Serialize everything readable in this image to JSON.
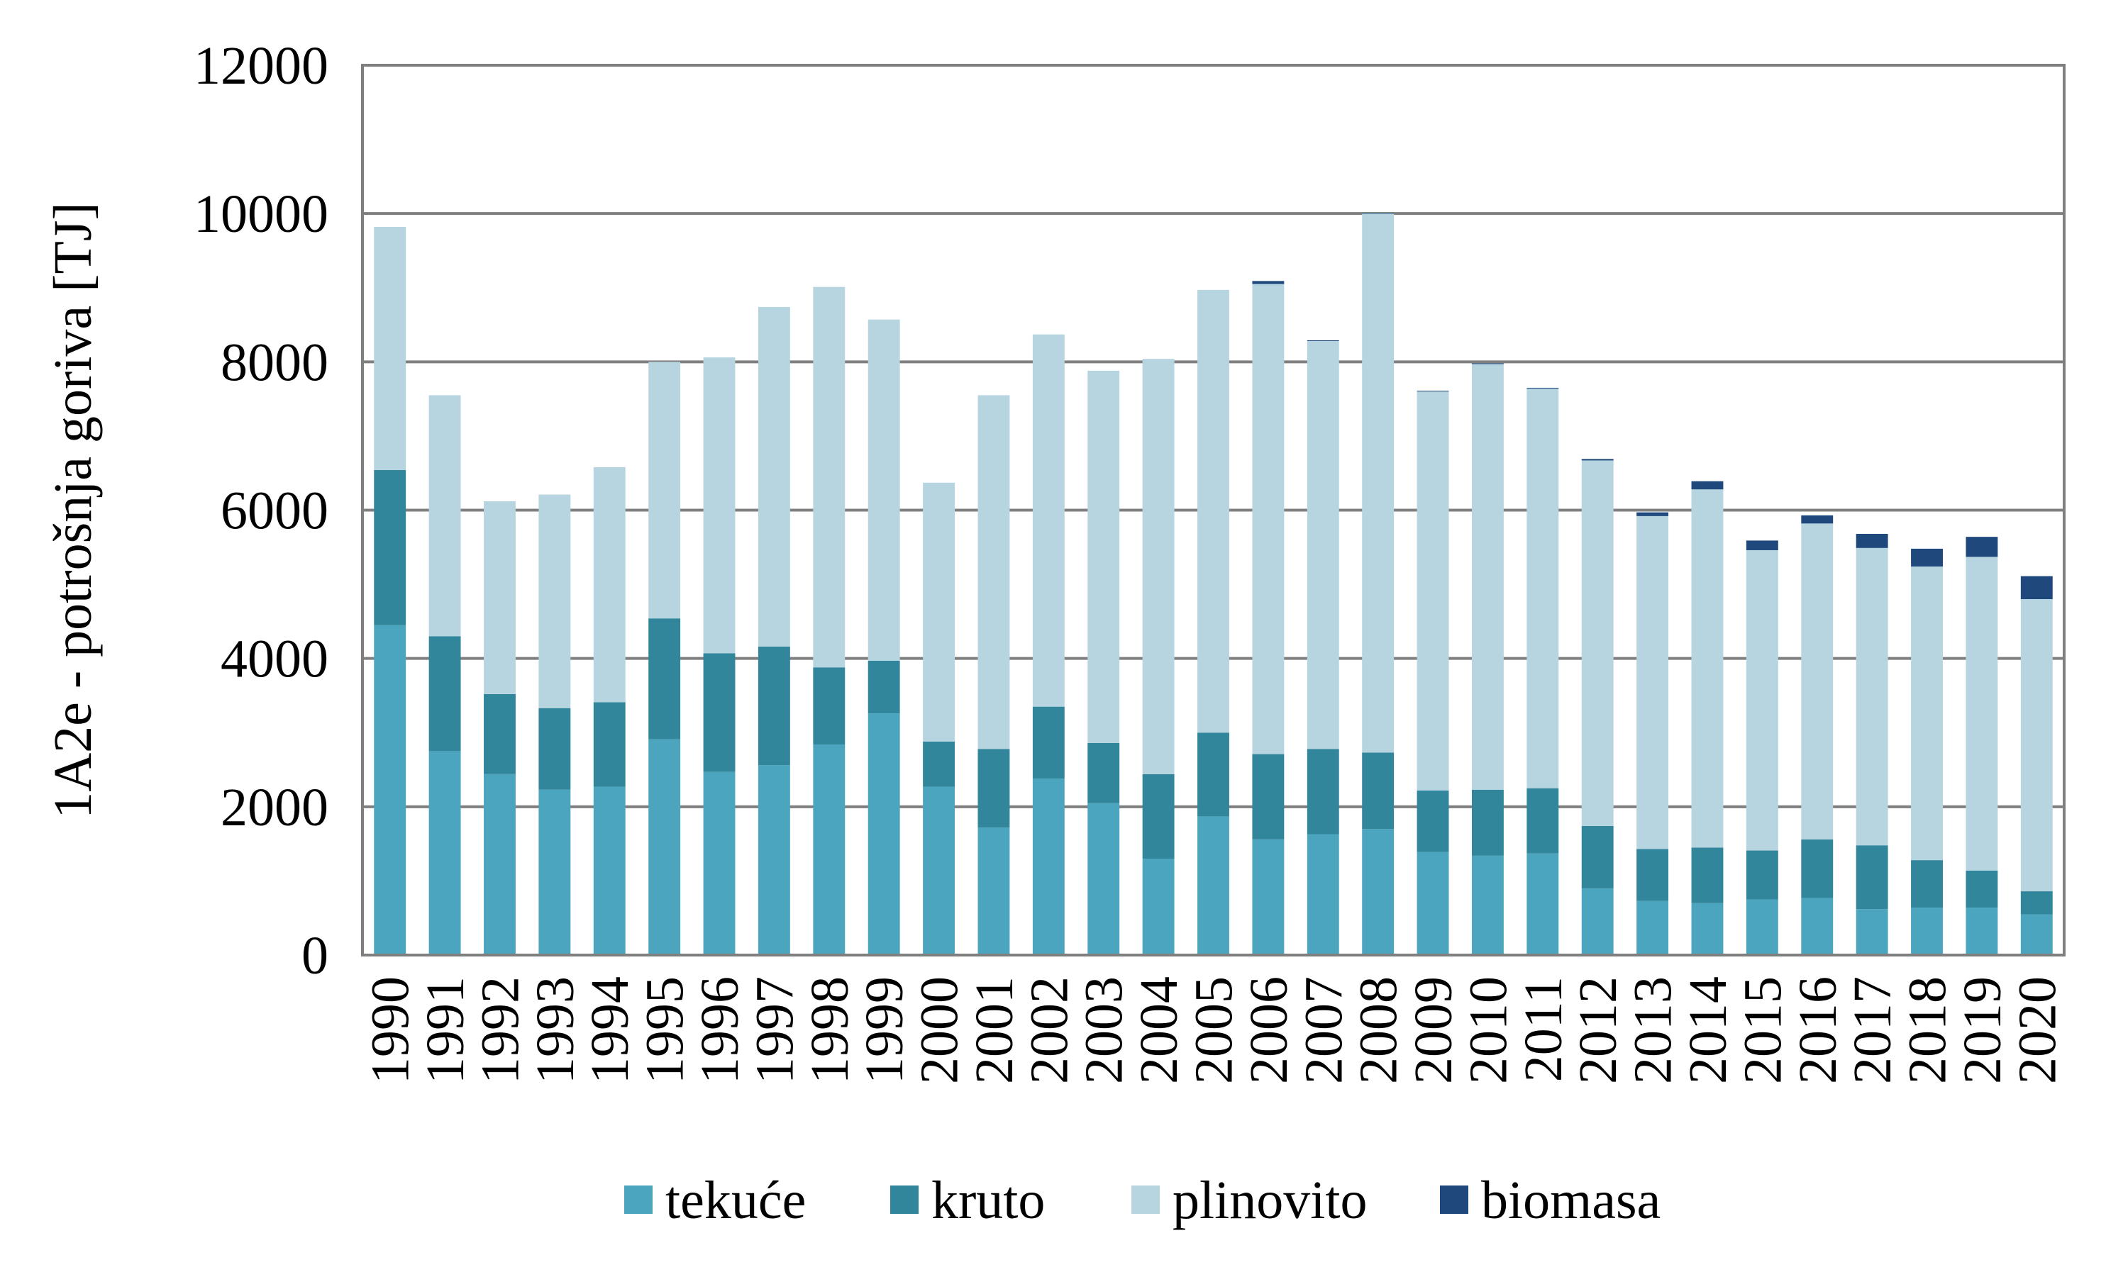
{
  "chart_data": {
    "type": "bar",
    "stacked": true,
    "title": "",
    "xlabel": "",
    "ylabel": "1A2e - potrošnja goriva [TJ]",
    "ylim": [
      0,
      12000
    ],
    "yticks": [
      0,
      2000,
      4000,
      6000,
      8000,
      10000,
      12000
    ],
    "grid": true,
    "legend_position": "bottom",
    "categories": [
      "1990",
      "1991",
      "1992",
      "1993",
      "1994",
      "1995",
      "1996",
      "1997",
      "1998",
      "1999",
      "2000",
      "2001",
      "2002",
      "2003",
      "2004",
      "2005",
      "2006",
      "2007",
      "2008",
      "2009",
      "2010",
      "2011",
      "2012",
      "2013",
      "2014",
      "2015",
      "2016",
      "2017",
      "2018",
      "2019",
      "2020"
    ],
    "series": [
      {
        "name": "tekuće",
        "color": "#4BA5BE",
        "values": [
          4450,
          2750,
          2440,
          2230,
          2270,
          2910,
          2470,
          2560,
          2840,
          3260,
          2270,
          1720,
          2380,
          2050,
          1300,
          1870,
          1560,
          1630,
          1700,
          1390,
          1340,
          1370,
          900,
          730,
          700,
          750,
          770,
          620,
          640,
          640,
          550
        ]
      },
      {
        "name": "kruto",
        "color": "#31869B",
        "values": [
          2090,
          1550,
          1080,
          1100,
          1140,
          1630,
          1600,
          1600,
          1040,
          710,
          610,
          1060,
          970,
          810,
          1140,
          1130,
          1150,
          1150,
          1030,
          830,
          890,
          880,
          840,
          700,
          750,
          660,
          790,
          860,
          640,
          500,
          310
        ]
      },
      {
        "name": "plinovito",
        "color": "#B7D5E0",
        "values": [
          3280,
          3250,
          2600,
          2880,
          3170,
          3460,
          3990,
          4580,
          5130,
          4600,
          3490,
          4770,
          5020,
          5020,
          5600,
          5970,
          6340,
          5500,
          7270,
          5380,
          5740,
          5390,
          4930,
          4490,
          4830,
          4050,
          4260,
          4010,
          3960,
          4230,
          3940
        ]
      },
      {
        "name": "biomasa",
        "color": "#1F497D",
        "values": [
          0,
          0,
          0,
          0,
          0,
          0,
          0,
          0,
          0,
          0,
          0,
          0,
          0,
          0,
          0,
          0,
          40,
          10,
          10,
          10,
          10,
          10,
          20,
          50,
          110,
          130,
          110,
          190,
          240,
          270,
          310
        ]
      }
    ]
  }
}
